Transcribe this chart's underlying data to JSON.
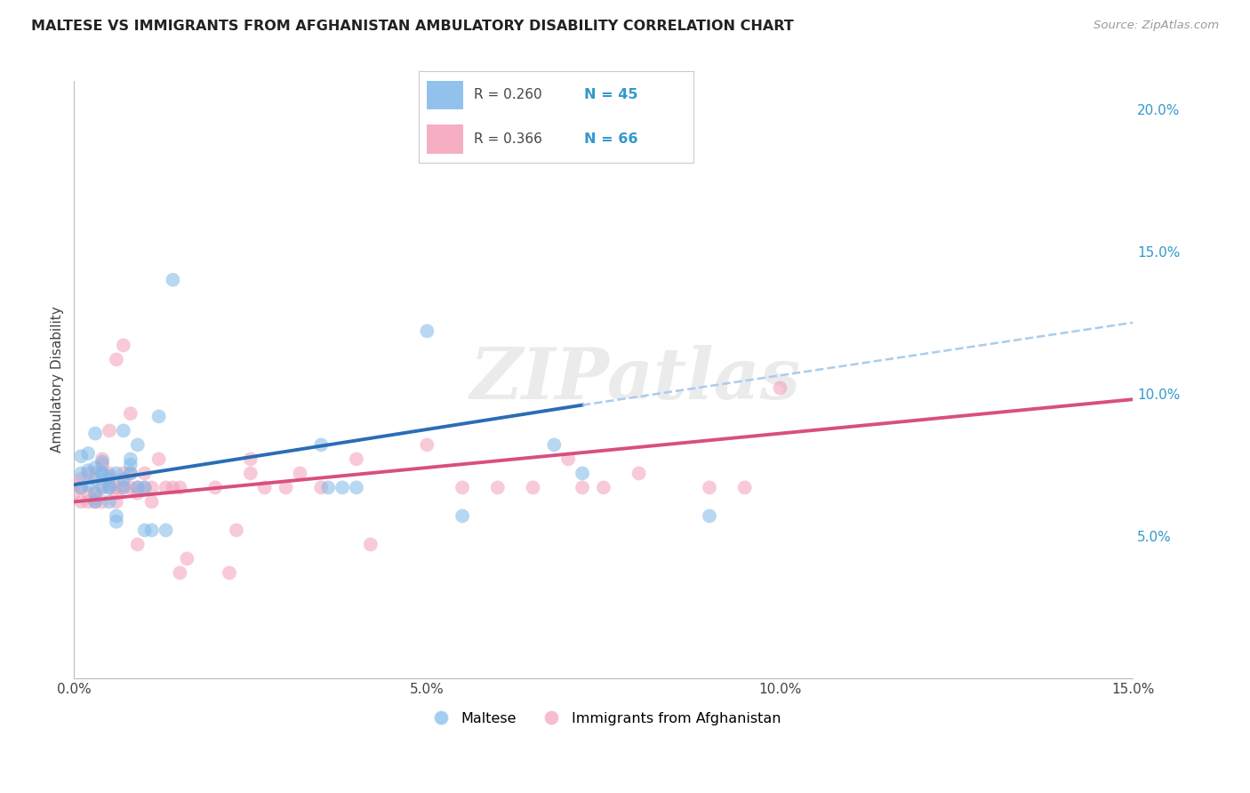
{
  "title": "MALTESE VS IMMIGRANTS FROM AFGHANISTAN AMBULATORY DISABILITY CORRELATION CHART",
  "source": "Source: ZipAtlas.com",
  "ylabel": "Ambulatory Disability",
  "xlim": [
    0.0,
    0.15
  ],
  "ylim": [
    0.0,
    0.21
  ],
  "xticks": [
    0.0,
    0.025,
    0.05,
    0.075,
    0.1,
    0.125,
    0.15
  ],
  "xticklabels": [
    "0.0%",
    "",
    "5.0%",
    "",
    "10.0%",
    "",
    "15.0%"
  ],
  "yticks_right": [
    0.05,
    0.1,
    0.15,
    0.2
  ],
  "yticklabels_right": [
    "5.0%",
    "10.0%",
    "15.0%",
    "20.0%"
  ],
  "background_color": "#ffffff",
  "grid_color": "#d0d0d0",
  "watermark_text": "ZIPatlas",
  "color_blue": "#7fb8e8",
  "color_pink": "#f4a0b8",
  "line_color_blue": "#2a6db5",
  "line_color_pink": "#d94f7e",
  "line_color_dashed": "#aaccee",
  "maltese_x": [
    0.001,
    0.001,
    0.001,
    0.002,
    0.002,
    0.002,
    0.003,
    0.003,
    0.003,
    0.003,
    0.004,
    0.004,
    0.004,
    0.005,
    0.005,
    0.005,
    0.006,
    0.006,
    0.007,
    0.007,
    0.007,
    0.008,
    0.008,
    0.009,
    0.009,
    0.01,
    0.01,
    0.011,
    0.012,
    0.013,
    0.014,
    0.035,
    0.036,
    0.038,
    0.04,
    0.05,
    0.055,
    0.068,
    0.072,
    0.09,
    0.003,
    0.004,
    0.005,
    0.006,
    0.008
  ],
  "maltese_y": [
    0.067,
    0.072,
    0.078,
    0.068,
    0.073,
    0.079,
    0.065,
    0.07,
    0.074,
    0.086,
    0.067,
    0.072,
    0.076,
    0.062,
    0.067,
    0.071,
    0.057,
    0.072,
    0.067,
    0.07,
    0.087,
    0.072,
    0.077,
    0.067,
    0.082,
    0.052,
    0.067,
    0.052,
    0.092,
    0.052,
    0.14,
    0.082,
    0.067,
    0.067,
    0.067,
    0.122,
    0.057,
    0.082,
    0.072,
    0.057,
    0.062,
    0.072,
    0.068,
    0.055,
    0.075
  ],
  "afghan_x": [
    0.0,
    0.0,
    0.001,
    0.001,
    0.001,
    0.002,
    0.002,
    0.002,
    0.003,
    0.003,
    0.003,
    0.004,
    0.004,
    0.004,
    0.005,
    0.005,
    0.005,
    0.006,
    0.006,
    0.006,
    0.007,
    0.007,
    0.007,
    0.008,
    0.008,
    0.009,
    0.009,
    0.01,
    0.01,
    0.011,
    0.011,
    0.012,
    0.013,
    0.014,
    0.015,
    0.015,
    0.016,
    0.02,
    0.022,
    0.023,
    0.025,
    0.025,
    0.027,
    0.03,
    0.032,
    0.035,
    0.04,
    0.042,
    0.05,
    0.055,
    0.06,
    0.065,
    0.07,
    0.072,
    0.075,
    0.08,
    0.09,
    0.095,
    0.1,
    0.008,
    0.004,
    0.006,
    0.003,
    0.005,
    0.007,
    0.009
  ],
  "afghan_y": [
    0.065,
    0.068,
    0.062,
    0.067,
    0.07,
    0.062,
    0.065,
    0.072,
    0.062,
    0.065,
    0.072,
    0.062,
    0.067,
    0.077,
    0.067,
    0.072,
    0.087,
    0.062,
    0.067,
    0.112,
    0.067,
    0.072,
    0.117,
    0.067,
    0.072,
    0.047,
    0.067,
    0.067,
    0.072,
    0.062,
    0.067,
    0.077,
    0.067,
    0.067,
    0.037,
    0.067,
    0.042,
    0.067,
    0.037,
    0.052,
    0.072,
    0.077,
    0.067,
    0.067,
    0.072,
    0.067,
    0.077,
    0.047,
    0.082,
    0.067,
    0.067,
    0.067,
    0.077,
    0.067,
    0.067,
    0.072,
    0.067,
    0.067,
    0.102,
    0.093,
    0.075,
    0.065,
    0.063,
    0.07,
    0.068,
    0.065
  ],
  "blue_line_x": [
    0.0,
    0.072
  ],
  "blue_line_y": [
    0.068,
    0.096
  ],
  "pink_line_x": [
    0.0,
    0.15
  ],
  "pink_line_y": [
    0.062,
    0.098
  ],
  "dashed_line_x": [
    0.072,
    0.15
  ],
  "dashed_line_y": [
    0.096,
    0.125
  ]
}
